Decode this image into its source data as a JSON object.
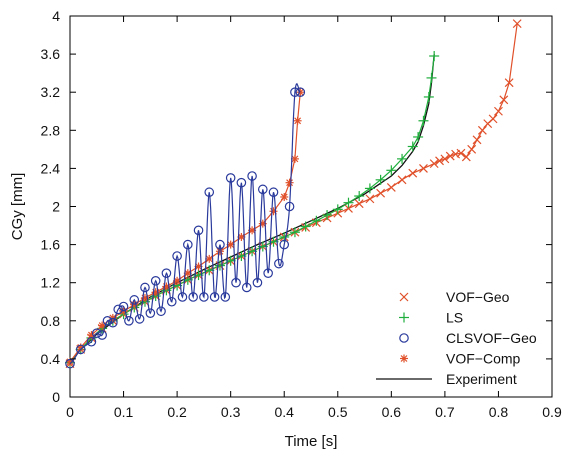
{
  "chart_data": {
    "type": "line",
    "xlabel": "Time [s]",
    "ylabel": "CGy [mm]",
    "xlim": [
      0,
      0.9
    ],
    "ylim": [
      0,
      4
    ],
    "xticks": [
      "0",
      "0.1",
      "0.2",
      "0.3",
      "0.4",
      "0.5",
      "0.6",
      "0.7",
      "0.8",
      "0.9"
    ],
    "yticks": [
      "0",
      "0.4",
      "0.8",
      "1.2",
      "1.6",
      "2",
      "2.4",
      "2.8",
      "3.2",
      "3.6",
      "4"
    ],
    "grid": false,
    "legend_position": "bottom-right",
    "series": [
      {
        "name": "VOF−Geo",
        "color": "#e0502a",
        "marker": "x",
        "line": true,
        "x": [
          0.0,
          0.02,
          0.04,
          0.06,
          0.08,
          0.1,
          0.12,
          0.14,
          0.16,
          0.18,
          0.2,
          0.22,
          0.24,
          0.26,
          0.28,
          0.3,
          0.32,
          0.34,
          0.36,
          0.38,
          0.4,
          0.42,
          0.44,
          0.46,
          0.48,
          0.5,
          0.52,
          0.54,
          0.56,
          0.58,
          0.6,
          0.62,
          0.64,
          0.66,
          0.68,
          0.69,
          0.7,
          0.71,
          0.72,
          0.73,
          0.74,
          0.75,
          0.76,
          0.77,
          0.78,
          0.79,
          0.8,
          0.81,
          0.82,
          0.835
        ],
        "y": [
          0.35,
          0.5,
          0.62,
          0.72,
          0.8,
          0.87,
          0.94,
          1.0,
          1.06,
          1.12,
          1.17,
          1.23,
          1.28,
          1.33,
          1.38,
          1.43,
          1.48,
          1.53,
          1.58,
          1.63,
          1.68,
          1.73,
          1.78,
          1.83,
          1.88,
          1.93,
          1.98,
          2.03,
          2.08,
          2.14,
          2.2,
          2.28,
          2.35,
          2.4,
          2.45,
          2.48,
          2.5,
          2.53,
          2.55,
          2.56,
          2.52,
          2.6,
          2.7,
          2.8,
          2.87,
          2.92,
          3.0,
          3.12,
          3.3,
          3.92
        ]
      },
      {
        "name": "LS",
        "color": "#1fae3c",
        "marker": "+",
        "line": true,
        "x": [
          0.0,
          0.02,
          0.04,
          0.06,
          0.08,
          0.1,
          0.12,
          0.14,
          0.16,
          0.18,
          0.2,
          0.22,
          0.24,
          0.26,
          0.28,
          0.3,
          0.32,
          0.34,
          0.36,
          0.38,
          0.4,
          0.42,
          0.44,
          0.46,
          0.48,
          0.5,
          0.52,
          0.54,
          0.56,
          0.58,
          0.6,
          0.62,
          0.64,
          0.65,
          0.66,
          0.67,
          0.675,
          0.68
        ],
        "y": [
          0.36,
          0.5,
          0.62,
          0.72,
          0.8,
          0.87,
          0.94,
          1.0,
          1.06,
          1.12,
          1.17,
          1.23,
          1.28,
          1.33,
          1.38,
          1.43,
          1.48,
          1.53,
          1.58,
          1.63,
          1.68,
          1.73,
          1.79,
          1.85,
          1.91,
          1.97,
          2.04,
          2.11,
          2.19,
          2.28,
          2.38,
          2.5,
          2.63,
          2.73,
          2.9,
          3.15,
          3.35,
          3.58
        ]
      },
      {
        "name": "CLSVOF−Geo",
        "color": "#2a3a9c",
        "marker": "o",
        "line": true,
        "x": [
          0.0,
          0.02,
          0.04,
          0.05,
          0.06,
          0.07,
          0.08,
          0.09,
          0.1,
          0.11,
          0.12,
          0.13,
          0.14,
          0.15,
          0.16,
          0.17,
          0.18,
          0.19,
          0.2,
          0.21,
          0.22,
          0.23,
          0.24,
          0.25,
          0.26,
          0.27,
          0.28,
          0.29,
          0.3,
          0.31,
          0.32,
          0.33,
          0.34,
          0.35,
          0.36,
          0.37,
          0.38,
          0.39,
          0.4,
          0.41,
          0.42,
          0.43
        ],
        "y": [
          0.35,
          0.5,
          0.58,
          0.67,
          0.65,
          0.8,
          0.78,
          0.92,
          0.95,
          0.8,
          1.02,
          0.82,
          1.15,
          0.88,
          1.22,
          0.9,
          1.3,
          1.0,
          1.48,
          1.05,
          1.6,
          1.05,
          1.75,
          1.05,
          2.15,
          1.05,
          1.6,
          1.05,
          2.3,
          1.2,
          2.25,
          1.15,
          2.32,
          1.2,
          2.18,
          1.3,
          2.15,
          1.4,
          1.6,
          2.0,
          3.2,
          3.2
        ]
      },
      {
        "name": "VOF−Comp",
        "color": "#e0502a",
        "marker": "*",
        "line": true,
        "x": [
          0.0,
          0.02,
          0.04,
          0.06,
          0.08,
          0.1,
          0.12,
          0.14,
          0.16,
          0.18,
          0.2,
          0.22,
          0.24,
          0.26,
          0.28,
          0.3,
          0.32,
          0.34,
          0.36,
          0.38,
          0.4,
          0.41,
          0.42,
          0.425,
          0.43
        ],
        "y": [
          0.37,
          0.52,
          0.65,
          0.75,
          0.83,
          0.9,
          0.97,
          1.04,
          1.1,
          1.16,
          1.22,
          1.3,
          1.37,
          1.45,
          1.53,
          1.6,
          1.68,
          1.75,
          1.82,
          1.95,
          2.1,
          2.25,
          2.5,
          2.9,
          3.2
        ]
      },
      {
        "name": "Experiment",
        "color": "#111111",
        "marker": "none",
        "line": true,
        "x": [
          0.0,
          0.02,
          0.05,
          0.1,
          0.15,
          0.2,
          0.25,
          0.3,
          0.35,
          0.4,
          0.45,
          0.5,
          0.55,
          0.6,
          0.62,
          0.64,
          0.65,
          0.66,
          0.67,
          0.675,
          0.68
        ],
        "y": [
          0.37,
          0.5,
          0.66,
          0.87,
          1.05,
          1.2,
          1.34,
          1.47,
          1.6,
          1.72,
          1.85,
          1.98,
          2.13,
          2.32,
          2.43,
          2.58,
          2.68,
          2.85,
          3.08,
          3.3,
          3.6
        ]
      }
    ]
  }
}
